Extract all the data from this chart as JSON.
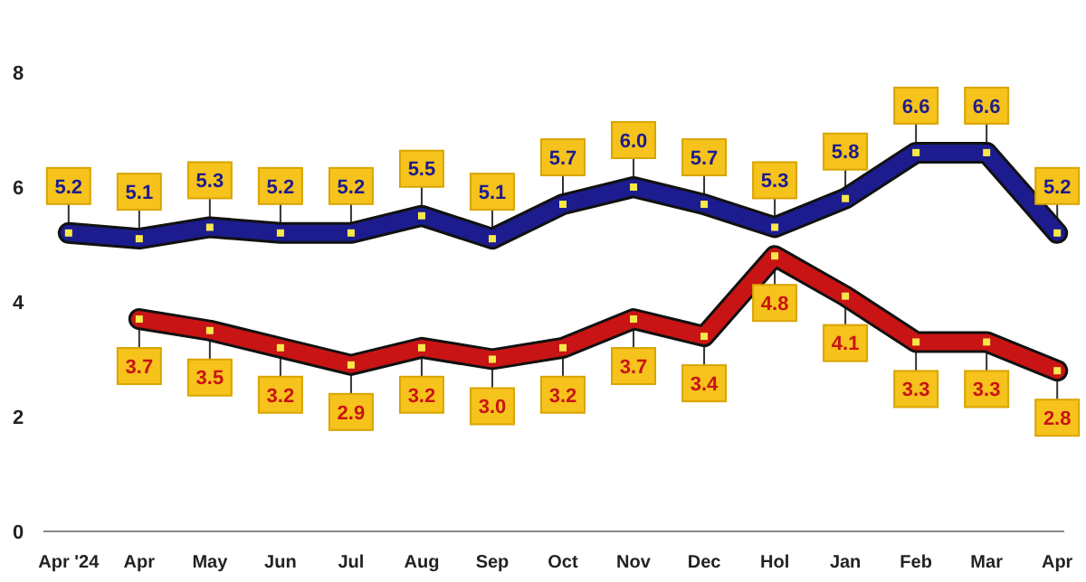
{
  "chart_data": {
    "type": "line",
    "categories": [
      "Apr '24",
      "Apr",
      "May",
      "Jun",
      "Jul",
      "Aug",
      "Sep",
      "Oct",
      "Nov",
      "Dec",
      "Hol",
      "Jan",
      "Feb",
      "Mar",
      "Apr"
    ],
    "series": [
      {
        "color": "#1c1c8f",
        "values": [
          5.2,
          5.1,
          5.3,
          5.2,
          5.2,
          5.5,
          5.1,
          5.7,
          6.0,
          5.7,
          5.3,
          5.8,
          6.6,
          6.6,
          5.2
        ],
        "value_labels": [
          "5.2",
          "5.1",
          "5.3",
          "5.2",
          "5.2",
          "5.5",
          "5.1",
          "5.7",
          "6.0",
          "5.7",
          "5.3",
          "5.8",
          "6.6",
          "6.6",
          "5.2"
        ]
      },
      {
        "color": "#c81414",
        "values": [
          null,
          3.7,
          3.5,
          3.2,
          2.9,
          3.2,
          3.0,
          3.2,
          3.7,
          3.4,
          4.8,
          4.1,
          3.3,
          3.3,
          2.8
        ],
        "value_labels": [
          null,
          "3.7",
          "3.5",
          "3.2",
          "2.9",
          "3.2",
          "3.0",
          "3.2",
          "3.7",
          "3.4",
          "4.8",
          "4.1",
          "3.3",
          "3.3",
          "2.8"
        ]
      }
    ],
    "ylim": [
      0,
      8
    ],
    "yticks": [
      0,
      2,
      4,
      6,
      8
    ],
    "grid": false,
    "marker": "square"
  }
}
